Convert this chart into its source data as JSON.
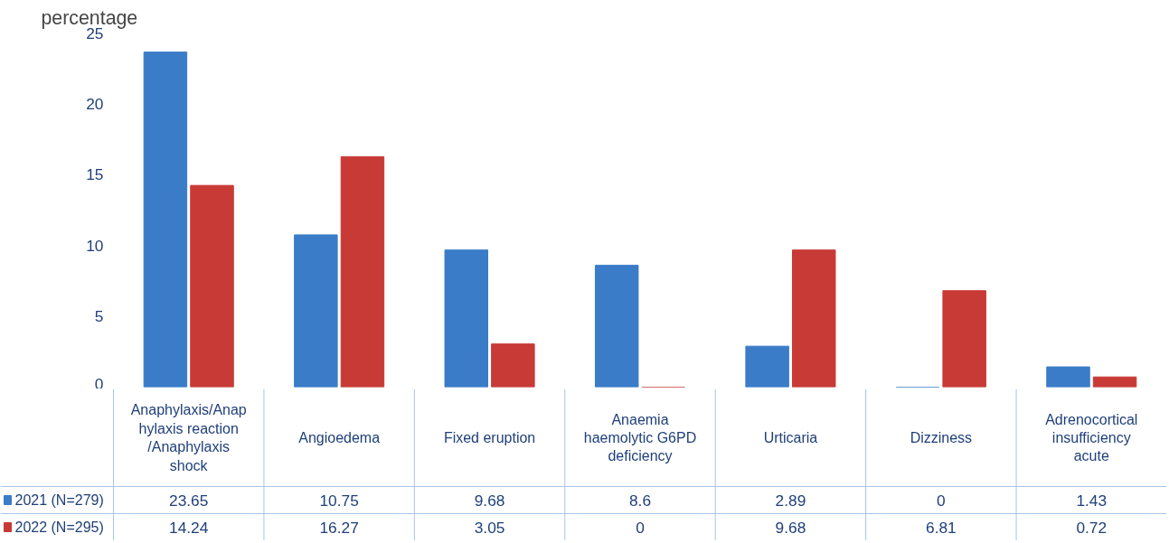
{
  "chart_data": {
    "type": "bar",
    "ylabel": "percentage",
    "categories": [
      "Anaphylaxis/Anaphylaxis reaction/Anaphylaxis shock",
      "Angioedema",
      "Fixed eruption",
      "Anaemia haemolytic G6PD deficiency",
      "Urticaria",
      "Dizziness",
      "Adrenocortical insufficiency acute"
    ],
    "series": [
      {
        "name": "2021 (N=279)",
        "color": "#3a7cc8",
        "values": [
          23.65,
          10.75,
          9.68,
          8.6,
          2.89,
          0,
          1.43
        ]
      },
      {
        "name": "2022 (N=295)",
        "color": "#c83a36",
        "values": [
          14.24,
          16.27,
          3.05,
          0,
          9.68,
          6.81,
          0.72
        ]
      }
    ],
    "ylim": [
      0,
      25
    ],
    "yticks": [
      0,
      5,
      10,
      15,
      20,
      25
    ],
    "grid": false,
    "legend": "bottom",
    "data_labels": true
  }
}
